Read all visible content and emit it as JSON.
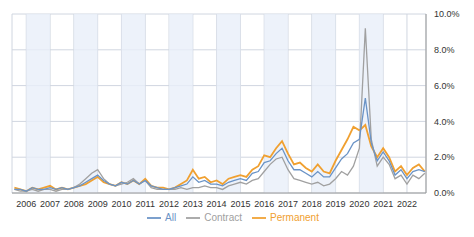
{
  "chart_data": {
    "type": "line",
    "x": [
      2005.5,
      2005.75,
      2006,
      2006.25,
      2006.5,
      2006.75,
      2007,
      2007.25,
      2007.5,
      2007.75,
      2008,
      2008.25,
      2008.5,
      2008.75,
      2009,
      2009.25,
      2009.5,
      2009.75,
      2010,
      2010.25,
      2010.5,
      2010.75,
      2011,
      2011.25,
      2011.5,
      2011.75,
      2012,
      2012.25,
      2012.5,
      2012.75,
      2013,
      2013.25,
      2013.5,
      2013.75,
      2014,
      2014.25,
      2014.5,
      2014.75,
      2015,
      2015.25,
      2015.5,
      2015.75,
      2016,
      2016.25,
      2016.5,
      2016.75,
      2017,
      2017.25,
      2017.5,
      2017.75,
      2018,
      2018.25,
      2018.5,
      2018.75,
      2019,
      2019.25,
      2019.5,
      2019.75,
      2020,
      2020.25,
      2020.5,
      2020.75,
      2021,
      2021.25,
      2021.5,
      2021.75,
      2022,
      2022.25,
      2022.5,
      2022.75
    ],
    "series": [
      {
        "name": "Permanent",
        "color": "#f0a030",
        "values": [
          0.3,
          0.2,
          0.1,
          0.3,
          0.2,
          0.3,
          0.4,
          0.2,
          0.3,
          0.2,
          0.3,
          0.4,
          0.5,
          0.7,
          0.9,
          0.6,
          0.5,
          0.4,
          0.6,
          0.5,
          0.7,
          0.5,
          0.8,
          0.4,
          0.3,
          0.3,
          0.2,
          0.3,
          0.5,
          0.7,
          1.3,
          0.8,
          0.9,
          0.6,
          0.7,
          0.5,
          0.8,
          0.9,
          1.0,
          0.9,
          1.3,
          1.5,
          2.1,
          2.0,
          2.5,
          2.9,
          2.2,
          1.6,
          1.7,
          1.4,
          1.2,
          1.6,
          1.2,
          1.1,
          1.8,
          2.4,
          3.0,
          3.7,
          3.5,
          3.8,
          2.6,
          2.0,
          2.5,
          2.0,
          1.2,
          1.5,
          1.0,
          1.4,
          1.6,
          1.2
        ]
      },
      {
        "name": "Contract",
        "color": "#a0a0a0",
        "values": [
          0.2,
          0.1,
          0.1,
          0.2,
          0.1,
          0.2,
          0.2,
          0.1,
          0.2,
          0.2,
          0.3,
          0.5,
          0.8,
          1.1,
          1.3,
          0.8,
          0.5,
          0.4,
          0.5,
          0.6,
          0.8,
          0.5,
          0.7,
          0.3,
          0.2,
          0.2,
          0.2,
          0.2,
          0.3,
          0.2,
          0.3,
          0.3,
          0.4,
          0.3,
          0.3,
          0.2,
          0.4,
          0.5,
          0.6,
          0.5,
          0.7,
          0.8,
          1.2,
          1.6,
          1.9,
          2.0,
          1.3,
          0.8,
          0.7,
          0.6,
          0.5,
          0.6,
          0.4,
          0.5,
          0.8,
          1.2,
          1.0,
          1.5,
          2.5,
          9.2,
          3.0,
          1.5,
          2.0,
          1.6,
          0.8,
          1.0,
          0.5,
          1.0,
          0.8,
          1.1
        ]
      },
      {
        "name": "All",
        "color": "#6a93c6",
        "values": [
          0.2,
          0.2,
          0.1,
          0.3,
          0.2,
          0.2,
          0.3,
          0.2,
          0.3,
          0.2,
          0.3,
          0.4,
          0.6,
          0.8,
          1.0,
          0.7,
          0.5,
          0.4,
          0.6,
          0.5,
          0.7,
          0.5,
          0.7,
          0.4,
          0.3,
          0.2,
          0.2,
          0.3,
          0.4,
          0.5,
          0.9,
          0.6,
          0.7,
          0.5,
          0.5,
          0.4,
          0.6,
          0.7,
          0.8,
          0.7,
          1.1,
          1.2,
          1.7,
          1.8,
          2.2,
          2.5,
          1.8,
          1.3,
          1.3,
          1.1,
          0.9,
          1.2,
          0.9,
          0.9,
          1.4,
          1.9,
          2.2,
          2.8,
          3.0,
          5.3,
          2.8,
          1.8,
          2.3,
          1.8,
          1.0,
          1.3,
          0.8,
          1.2,
          1.3,
          1.2
        ]
      }
    ],
    "xlim": [
      2005.4,
      2022.8
    ],
    "xticks": [
      2006,
      2007,
      2008,
      2009,
      2010,
      2011,
      2012,
      2013,
      2014,
      2015,
      2016,
      2017,
      2018,
      2019,
      2020,
      2021,
      2022
    ],
    "ylim": [
      0,
      10
    ],
    "yticks": [
      {
        "value": 0,
        "label": "0.0%"
      },
      {
        "value": 2,
        "label": "2.0%"
      },
      {
        "value": 4,
        "label": "4.0%"
      },
      {
        "value": 6,
        "label": "6.0%"
      },
      {
        "value": 8,
        "label": "8.0%"
      },
      {
        "value": 10,
        "label": "10.0%"
      }
    ],
    "grid": true,
    "legend": "bottom"
  }
}
